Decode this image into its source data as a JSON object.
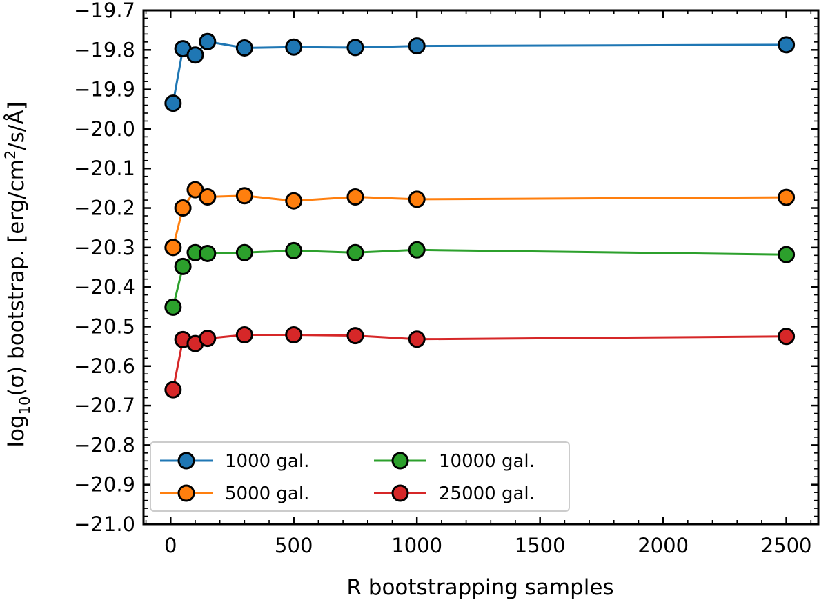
{
  "chart_data": {
    "type": "line",
    "title": "",
    "xlabel": "R bootstrapping samples",
    "ylabel": {
      "prefix": "log",
      "sub": "10",
      "sigma_part": "(σ) bootstrap. [erg/cm",
      "sup": "2",
      "suffix": "/s/Å]"
    },
    "xlim": [
      -110,
      2630
    ],
    "ylim": [
      -21.0,
      -19.7
    ],
    "x_ticks": [
      0,
      500,
      1000,
      1500,
      2000,
      2500
    ],
    "x_tick_labels": [
      "0",
      "500",
      "1000",
      "1500",
      "2000",
      "2500"
    ],
    "y_ticks": [
      -21.0,
      -20.9,
      -20.8,
      -20.7,
      -20.6,
      -20.5,
      -20.4,
      -20.3,
      -20.2,
      -20.1,
      -20.0,
      -19.9,
      -19.8,
      -19.7
    ],
    "y_tick_labels": [
      "−21.0",
      "−20.9",
      "−20.8",
      "−20.7",
      "−20.6",
      "−20.5",
      "−20.4",
      "−20.3",
      "−20.2",
      "−20.1",
      "−20.0",
      "−19.9",
      "−19.8",
      "−19.7"
    ],
    "x": [
      10,
      50,
      100,
      150,
      300,
      500,
      750,
      1000,
      2500
    ],
    "series": [
      {
        "name": "1000 gal.",
        "color": "#1f77b4",
        "values": [
          -19.935,
          -19.797,
          -19.813,
          -19.779,
          -19.795,
          -19.793,
          -19.794,
          -19.79,
          -19.787
        ]
      },
      {
        "name": "5000 gal.",
        "color": "#ff7f0e",
        "values": [
          -20.3,
          -20.2,
          -20.154,
          -20.172,
          -20.169,
          -20.182,
          -20.172,
          -20.178,
          -20.173
        ]
      },
      {
        "name": "10000 gal.",
        "color": "#2ca02c",
        "values": [
          -20.451,
          -20.348,
          -20.313,
          -20.315,
          -20.313,
          -20.308,
          -20.313,
          -20.306,
          -20.318
        ]
      },
      {
        "name": "25000 gal.",
        "color": "#d62728",
        "values": [
          -20.66,
          -20.533,
          -20.543,
          -20.53,
          -20.521,
          -20.521,
          -20.523,
          -20.532,
          -20.525
        ]
      }
    ],
    "legend_location": "lower-left",
    "legend_columns": 2,
    "grid": false
  }
}
